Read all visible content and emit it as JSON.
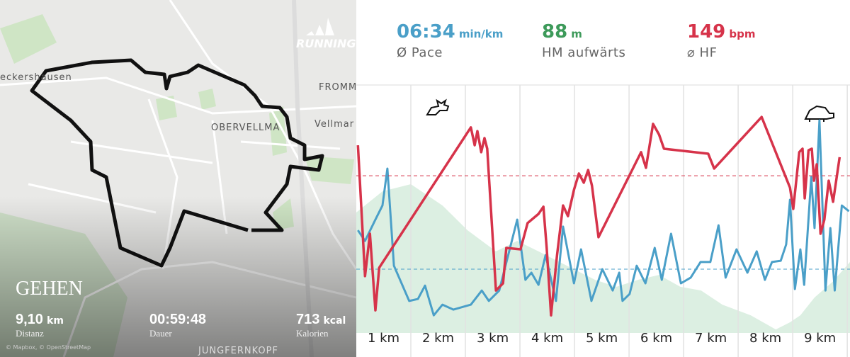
{
  "map": {
    "brand": "RUNNING",
    "places": [
      "eckershausen",
      "FROMM",
      "OBERVELLMA",
      "Vellmar",
      "JUNGFERNKOPF"
    ],
    "attribution": "© Mapbox, © OpenStreetMap"
  },
  "summary": {
    "activity": "GEHEN",
    "items": [
      {
        "value": "9,10",
        "unit": "km",
        "label": "Distanz"
      },
      {
        "value": "00:59:48",
        "label": "Dauer"
      },
      {
        "value": "713",
        "unit": "kcal",
        "label": "Kalorien"
      }
    ]
  },
  "stats": [
    {
      "value": "06:34",
      "unit": "min/km",
      "label": "Ø Pace",
      "color": "#4a9fc8"
    },
    {
      "value": "88",
      "unit": "m",
      "label": "HM aufwärts",
      "color": "#3d9a5a"
    },
    {
      "value": "149",
      "unit": "bpm",
      "label": "⌀ HF",
      "color": "#d6334a"
    }
  ],
  "chart_data": {
    "type": "line",
    "xlim": [
      0,
      9.05
    ],
    "ylim": [
      0,
      100
    ],
    "xgrid": [
      1,
      2,
      3,
      4,
      5,
      6,
      7,
      8,
      9
    ],
    "xticks": [
      {
        "value": 0.5,
        "label": "1 km"
      },
      {
        "value": 1.5,
        "label": "2 km"
      },
      {
        "value": 2.5,
        "label": "3 km"
      },
      {
        "value": 3.5,
        "label": "4 km"
      },
      {
        "value": 4.5,
        "label": "5 km"
      },
      {
        "value": 5.5,
        "label": "6 km"
      },
      {
        "value": 6.5,
        "label": "7 km"
      },
      {
        "value": 7.5,
        "label": "8 km"
      },
      {
        "value": 8.5,
        "label": "9 km"
      }
    ],
    "area": {
      "color": "#dcefe2",
      "x": [
        0,
        0.48,
        1,
        1.58,
        2.04,
        2.56,
        2.95,
        3.34,
        3.86,
        4.38,
        4.77,
        5.16,
        5.55,
        5.94,
        6.32,
        6.71,
        7.23,
        7.69,
        7.95,
        8.14,
        8.4,
        8.73,
        9.05
      ],
      "values": [
        48.6,
        57.1,
        60,
        51.4,
        41.4,
        32.9,
        37.1,
        32.9,
        27.1,
        21.4,
        18.6,
        21.4,
        23.4,
        18.6,
        17.1,
        11.4,
        7.1,
        1.4,
        4.3,
        7.1,
        14.3,
        20.6,
        28.6
      ]
    },
    "series": [
      {
        "color": "#4a9fc8",
        "avg": 25.7,
        "x": [
          0.03,
          0.16,
          0.35,
          0.48,
          0.57,
          0.69,
          0.97,
          1.13,
          1.26,
          1.42,
          1.58,
          1.78,
          2.1,
          2.3,
          2.43,
          2.62,
          2.95,
          3.1,
          3.21,
          3.34,
          3.47,
          3.66,
          3.79,
          3.99,
          4.12,
          4.31,
          4.51,
          4.7,
          4.82,
          4.88,
          5.01,
          5.14,
          5.3,
          5.47,
          5.6,
          5.77,
          5.95,
          6.13,
          6.31,
          6.49,
          6.64,
          6.77,
          6.97,
          7.17,
          7.34,
          7.49,
          7.62,
          7.78,
          7.88,
          7.95,
          8.04,
          8.14,
          8.21,
          8.34,
          8.4,
          8.49,
          8.6,
          8.69,
          8.77,
          8.9,
          9.03
        ],
        "values": [
          41.4,
          37.1,
          45.7,
          51.4,
          66.3,
          27.1,
          12.9,
          13.7,
          19.1,
          7.1,
          11.4,
          9.4,
          11.4,
          17.1,
          12.9,
          17.1,
          45.7,
          21.4,
          24.3,
          19.4,
          31.4,
          12.9,
          42.9,
          20,
          33.7,
          12.9,
          25.7,
          17.1,
          24.3,
          12.9,
          15.7,
          27.1,
          20,
          34.3,
          21.4,
          40,
          20,
          22.3,
          28.6,
          28.6,
          43.4,
          22.3,
          33.7,
          24.3,
          32.9,
          21.4,
          28.6,
          29.1,
          35.7,
          53.7,
          17.7,
          33.7,
          19.4,
          62.9,
          42.3,
          85.7,
          17.1,
          42.3,
          17.1,
          51.4,
          49.1
        ]
      },
      {
        "color": "#d6334a",
        "avg": 63.4,
        "x": [
          0.03,
          0.16,
          0.25,
          0.35,
          0.42,
          2.1,
          2.17,
          2.22,
          2.29,
          2.35,
          2.4,
          2.56,
          2.69,
          2.75,
          3.01,
          3.14,
          3.34,
          3.43,
          3.49,
          3.57,
          3.68,
          3.79,
          3.88,
          3.99,
          4.08,
          4.17,
          4.25,
          4.32,
          4.44,
          5.22,
          5.31,
          5.44,
          5.55,
          5.64,
          6.45,
          6.56,
          7.43,
          7.95,
          8.01,
          8.12,
          8.18,
          8.22,
          8.29,
          8.35,
          8.39,
          8.44,
          8.51,
          8.58,
          8.66,
          8.74,
          8.86
        ],
        "values": [
          75.7,
          22.9,
          40,
          9.1,
          26.3,
          82.9,
          75.7,
          81.4,
          72.9,
          78.6,
          74.3,
          17.1,
          20,
          34.3,
          33.7,
          44.3,
          48,
          50.9,
          34.3,
          7.1,
          31.4,
          51.4,
          47.1,
          57.7,
          64.3,
          60.6,
          65.7,
          59.4,
          38.6,
          72.9,
          66.6,
          84.3,
          80,
          74.3,
          72.3,
          66.3,
          87.1,
          58.6,
          50,
          72.9,
          74.3,
          54.3,
          73.7,
          74.3,
          61.4,
          68,
          40,
          45.7,
          61.4,
          52.9,
          70.9
        ]
      }
    ]
  }
}
